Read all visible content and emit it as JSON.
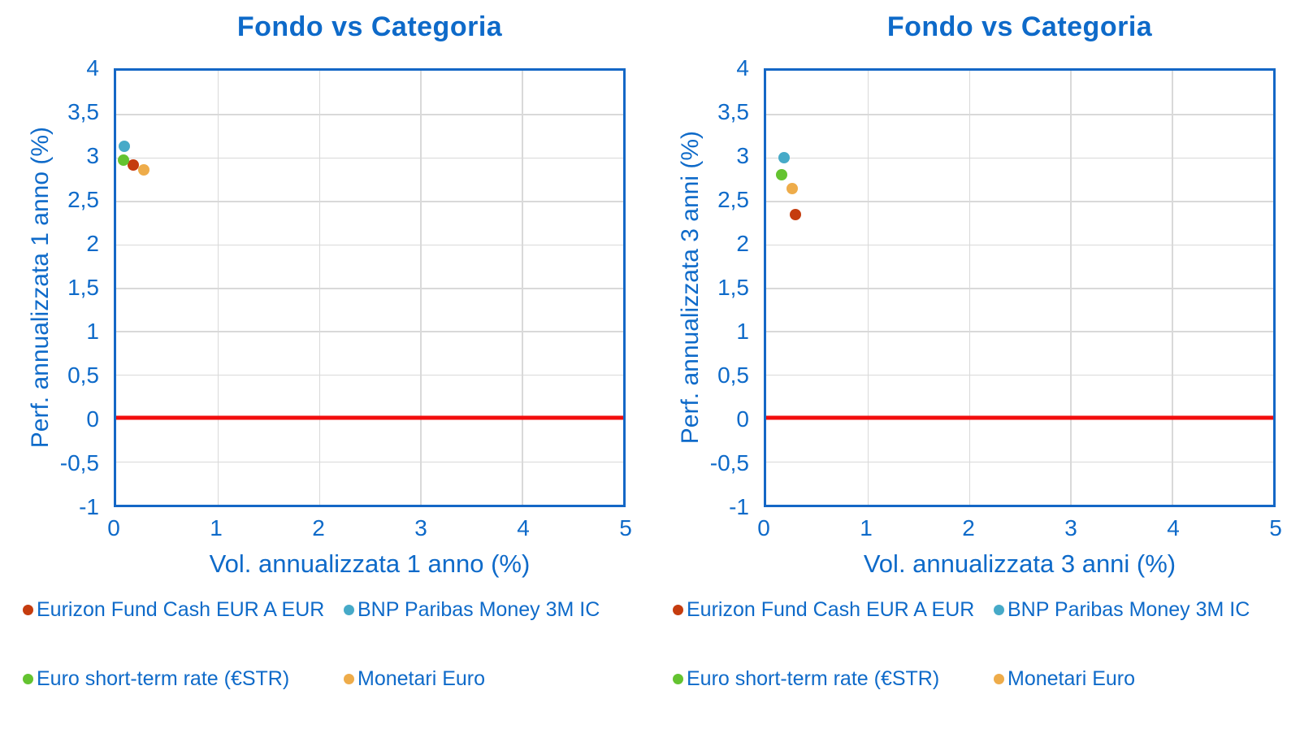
{
  "colors": {
    "accent_blue": "#0e6ac9",
    "frame_blue": "#1467c6",
    "grid_gray": "#d9d9d9",
    "zero_line_red": "#f20d0d"
  },
  "chart_data": [
    {
      "type": "scatter",
      "title": "Fondo vs Categoria",
      "xlabel": "Vol. annualizzata 1 anno (%)",
      "ylabel": "Perf. annualizzata 1 anno (%)",
      "xlim": [
        0,
        5
      ],
      "ylim": [
        -1,
        4
      ],
      "xticks": [
        0,
        1,
        2,
        3,
        4,
        5
      ],
      "xtick_labels": [
        "0",
        "1",
        "2",
        "3",
        "4",
        "5"
      ],
      "yticks": [
        4,
        3.5,
        3,
        2.5,
        2,
        1.5,
        1,
        0.5,
        0,
        -0.5,
        -1
      ],
      "ytick_labels": [
        "4",
        "3,5",
        "3",
        "2,5",
        "2",
        "1,5",
        "1",
        "0,5",
        "0",
        "-0,5",
        "-1"
      ],
      "grid": true,
      "legend_position": "bottom",
      "zero_line": {
        "y": 0,
        "color": "#f20d0d"
      },
      "series": [
        {
          "name": "Eurizon Fund Cash EUR A EUR",
          "color": "#c53c0e",
          "points": [
            {
              "x": 0.17,
              "y": 2.91
            }
          ]
        },
        {
          "name": "BNP Paribas Money 3M IC",
          "color": "#46aac8",
          "points": [
            {
              "x": 0.08,
              "y": 3.13
            }
          ]
        },
        {
          "name": "Euro short-term rate (€STR)",
          "color": "#64c330",
          "points": [
            {
              "x": 0.07,
              "y": 2.97
            }
          ]
        },
        {
          "name": "Monetari Euro",
          "color": "#eeac4a",
          "points": [
            {
              "x": 0.27,
              "y": 2.86
            }
          ]
        }
      ]
    },
    {
      "type": "scatter",
      "title": "Fondo vs Categoria",
      "xlabel": "Vol. annualizzata 3 anni (%)",
      "ylabel": "Perf. annualizzata 3 anni (%)",
      "xlim": [
        0,
        5
      ],
      "ylim": [
        -1,
        4
      ],
      "xticks": [
        0,
        1,
        2,
        3,
        4,
        5
      ],
      "xtick_labels": [
        "0",
        "1",
        "2",
        "3",
        "4",
        "5"
      ],
      "yticks": [
        4,
        3.5,
        3,
        2.5,
        2,
        1.5,
        1,
        0.5,
        0,
        -0.5,
        -1
      ],
      "ytick_labels": [
        "4",
        "3,5",
        "3",
        "2,5",
        "2",
        "1,5",
        "1",
        "0,5",
        "0",
        "-0,5",
        "-1"
      ],
      "grid": true,
      "legend_position": "bottom",
      "zero_line": {
        "y": 0,
        "color": "#f20d0d"
      },
      "series": [
        {
          "name": "Eurizon Fund Cash EUR A EUR",
          "color": "#c53c0e",
          "points": [
            {
              "x": 0.29,
              "y": 2.34
            }
          ]
        },
        {
          "name": "BNP Paribas Money 3M IC",
          "color": "#46aac8",
          "points": [
            {
              "x": 0.18,
              "y": 3.0
            }
          ]
        },
        {
          "name": "Euro short-term rate (€STR)",
          "color": "#64c330",
          "points": [
            {
              "x": 0.15,
              "y": 2.8
            }
          ]
        },
        {
          "name": "Monetari Euro",
          "color": "#eeac4a",
          "points": [
            {
              "x": 0.26,
              "y": 2.64
            }
          ]
        }
      ]
    }
  ]
}
